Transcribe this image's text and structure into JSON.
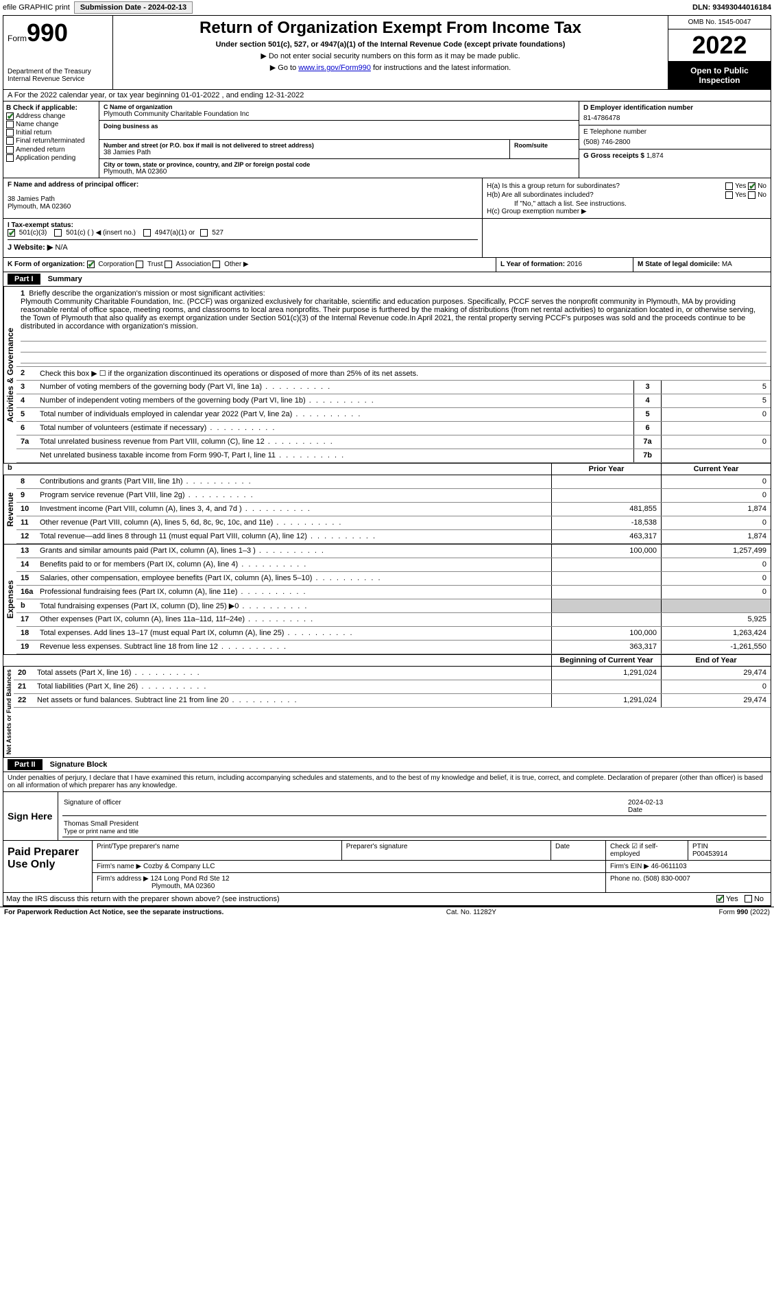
{
  "topbar": {
    "efile": "efile GRAPHIC print",
    "sub_label": "Submission Date - ",
    "sub_date": "2024-02-13",
    "dln_label": "DLN: ",
    "dln": "93493044016184"
  },
  "header": {
    "form_word": "Form",
    "form_num": "990",
    "dept": "Department of the Treasury",
    "irs": "Internal Revenue Service",
    "title": "Return of Organization Exempt From Income Tax",
    "sub": "Under section 501(c), 527, or 4947(a)(1) of the Internal Revenue Code (except private foundations)",
    "note1": "▶ Do not enter social security numbers on this form as it may be made public.",
    "note2_pre": "▶ Go to ",
    "note2_link": "www.irs.gov/Form990",
    "note2_post": " for instructions and the latest information.",
    "omb": "OMB No. 1545-0047",
    "year": "2022",
    "open": "Open to Public Inspection"
  },
  "rowA": "A For the 2022 calendar year, or tax year beginning 01-01-2022  , and ending 12-31-2022",
  "B": {
    "title": "B Check if applicable:",
    "items": [
      "Address change",
      "Name change",
      "Initial return",
      "Final return/terminated",
      "Amended return",
      "Application pending"
    ],
    "checked": [
      true,
      false,
      false,
      false,
      false,
      false
    ]
  },
  "C": {
    "name_lbl": "C Name of organization",
    "name": "Plymouth Community Charitable Foundation Inc",
    "dba_lbl": "Doing business as",
    "addr_lbl": "Number and street (or P.O. box if mail is not delivered to street address)",
    "room_lbl": "Room/suite",
    "addr": "38 Jamies Path",
    "city_lbl": "City or town, state or province, country, and ZIP or foreign postal code",
    "city": "Plymouth, MA  02360"
  },
  "D": {
    "lbl": "D Employer identification number",
    "val": "81-4786478"
  },
  "E": {
    "lbl": "E Telephone number",
    "val": "(508) 746-2800"
  },
  "G": {
    "lbl": "G Gross receipts $",
    "val": "1,874"
  },
  "F": {
    "lbl": "F  Name and address of principal officer:",
    "addr1": "38 Jamies Path",
    "addr2": "Plymouth, MA  02360"
  },
  "H": {
    "a": "H(a)  Is this a group return for subordinates?",
    "b": "H(b)  Are all subordinates included?",
    "b_note": "If \"No,\" attach a list. See instructions.",
    "c": "H(c)  Group exemption number ▶",
    "yes": "Yes",
    "no": "No"
  },
  "I": {
    "lbl": "I  Tax-exempt status:",
    "opts": [
      "501(c)(3)",
      "501(c) (  ) ◀ (insert no.)",
      "4947(a)(1) or",
      "527"
    ]
  },
  "J": {
    "lbl": "J  Website: ▶",
    "val": "N/A"
  },
  "K": {
    "lbl": "K Form of organization:",
    "opts": [
      "Corporation",
      "Trust",
      "Association",
      "Other ▶"
    ]
  },
  "L": {
    "lbl": "L Year of formation:",
    "val": "2016"
  },
  "M": {
    "lbl": "M State of legal domicile:",
    "val": "MA"
  },
  "part1": {
    "tag": "Part I",
    "title": "Summary"
  },
  "mission": {
    "num": "1",
    "lbl": "Briefly describe the organization's mission or most significant activities:",
    "text": "Plymouth Community Charitable Foundation, Inc. (PCCF) was organized exclusively for charitable, scientific and education purposes. Specifically, PCCF serves the nonprofit community in Plymouth, MA by providing reasonable rental of office space, meeting rooms, and classrooms to local area nonprofits. Their purpose is furthered by the making of distributions (from net rental activities) to organization located in, or otherwise serving, the Town of Plymouth that also qualify as exempt organization under Section 501(c)(3) of the Internal Revenue code.In April 2021, the rental property serving PCCF's purposes was sold and the proceeds continue to be distributed in accordance with organization's mission."
  },
  "gov_lines": [
    {
      "n": "2",
      "d": "Check this box ▶ ☐ if the organization discontinued its operations or disposed of more than 25% of its net assets."
    },
    {
      "n": "3",
      "d": "Number of voting members of the governing body (Part VI, line 1a)",
      "box": "3",
      "v": "5"
    },
    {
      "n": "4",
      "d": "Number of independent voting members of the governing body (Part VI, line 1b)",
      "box": "4",
      "v": "5"
    },
    {
      "n": "5",
      "d": "Total number of individuals employed in calendar year 2022 (Part V, line 2a)",
      "box": "5",
      "v": "0"
    },
    {
      "n": "6",
      "d": "Total number of volunteers (estimate if necessary)",
      "box": "6",
      "v": ""
    },
    {
      "n": "7a",
      "d": "Total unrelated business revenue from Part VIII, column (C), line 12",
      "box": "7a",
      "v": "0"
    },
    {
      "n": "",
      "d": "Net unrelated business taxable income from Form 990-T, Part I, line 11",
      "box": "7b",
      "v": ""
    }
  ],
  "col_hdrs": {
    "b": "b",
    "prior": "Prior Year",
    "current": "Current Year"
  },
  "rev_lines": [
    {
      "n": "8",
      "d": "Contributions and grants (Part VIII, line 1h)",
      "p": "",
      "c": "0"
    },
    {
      "n": "9",
      "d": "Program service revenue (Part VIII, line 2g)",
      "p": "",
      "c": "0"
    },
    {
      "n": "10",
      "d": "Investment income (Part VIII, column (A), lines 3, 4, and 7d )",
      "p": "481,855",
      "c": "1,874"
    },
    {
      "n": "11",
      "d": "Other revenue (Part VIII, column (A), lines 5, 6d, 8c, 9c, 10c, and 11e)",
      "p": "-18,538",
      "c": "0"
    },
    {
      "n": "12",
      "d": "Total revenue—add lines 8 through 11 (must equal Part VIII, column (A), line 12)",
      "p": "463,317",
      "c": "1,874"
    }
  ],
  "exp_lines": [
    {
      "n": "13",
      "d": "Grants and similar amounts paid (Part IX, column (A), lines 1–3 )",
      "p": "100,000",
      "c": "1,257,499"
    },
    {
      "n": "14",
      "d": "Benefits paid to or for members (Part IX, column (A), line 4)",
      "p": "",
      "c": "0"
    },
    {
      "n": "15",
      "d": "Salaries, other compensation, employee benefits (Part IX, column (A), lines 5–10)",
      "p": "",
      "c": "0"
    },
    {
      "n": "16a",
      "d": "Professional fundraising fees (Part IX, column (A), line 11e)",
      "p": "",
      "c": "0"
    },
    {
      "n": "b",
      "d": "Total fundraising expenses (Part IX, column (D), line 25) ▶0",
      "p": "shaded",
      "c": "shaded"
    },
    {
      "n": "17",
      "d": "Other expenses (Part IX, column (A), lines 11a–11d, 11f–24e)",
      "p": "",
      "c": "5,925"
    },
    {
      "n": "18",
      "d": "Total expenses. Add lines 13–17 (must equal Part IX, column (A), line 25)",
      "p": "100,000",
      "c": "1,263,424"
    },
    {
      "n": "19",
      "d": "Revenue less expenses. Subtract line 18 from line 12",
      "p": "363,317",
      "c": "-1,261,550"
    }
  ],
  "na_hdrs": {
    "prior": "Beginning of Current Year",
    "current": "End of Year"
  },
  "na_lines": [
    {
      "n": "20",
      "d": "Total assets (Part X, line 16)",
      "p": "1,291,024",
      "c": "29,474"
    },
    {
      "n": "21",
      "d": "Total liabilities (Part X, line 26)",
      "p": "",
      "c": "0"
    },
    {
      "n": "22",
      "d": "Net assets or fund balances. Subtract line 21 from line 20",
      "p": "1,291,024",
      "c": "29,474"
    }
  ],
  "vlabels": {
    "gov": "Activities & Governance",
    "rev": "Revenue",
    "exp": "Expenses",
    "na": "Net Assets or Fund Balances"
  },
  "part2": {
    "tag": "Part II",
    "title": "Signature Block"
  },
  "sig": {
    "intro": "Under penalties of perjury, I declare that I have examined this return, including accompanying schedules and statements, and to the best of my knowledge and belief, it is true, correct, and complete. Declaration of preparer (other than officer) is based on all information of which preparer has any knowledge.",
    "here": "Sign Here",
    "officer": "Signature of officer",
    "date_lbl": "Date",
    "date": "2024-02-13",
    "name": "Thomas Small President",
    "name_lbl": "Type or print name and title"
  },
  "paid": {
    "label": "Paid Preparer Use Only",
    "h1": "Print/Type preparer's name",
    "h2": "Preparer's signature",
    "h3": "Date",
    "h4": "Check ☑ if self-employed",
    "h5_lbl": "PTIN",
    "h5": "P00453914",
    "firm_lbl": "Firm's name  ▶",
    "firm": "Cozby & Company LLC",
    "ein_lbl": "Firm's EIN ▶",
    "ein": "46-0611103",
    "addr_lbl": "Firm's address ▶",
    "addr1": "124 Long Pond Rd Ste 12",
    "addr2": "Plymouth, MA  02360",
    "phone_lbl": "Phone no.",
    "phone": "(508) 830-0007",
    "discuss": "May the IRS discuss this return with the preparer shown above? (see instructions)",
    "yes": "Yes",
    "no": "No"
  },
  "footer": {
    "left": "For Paperwork Reduction Act Notice, see the separate instructions.",
    "mid": "Cat. No. 11282Y",
    "right": "Form 990 (2022)"
  }
}
